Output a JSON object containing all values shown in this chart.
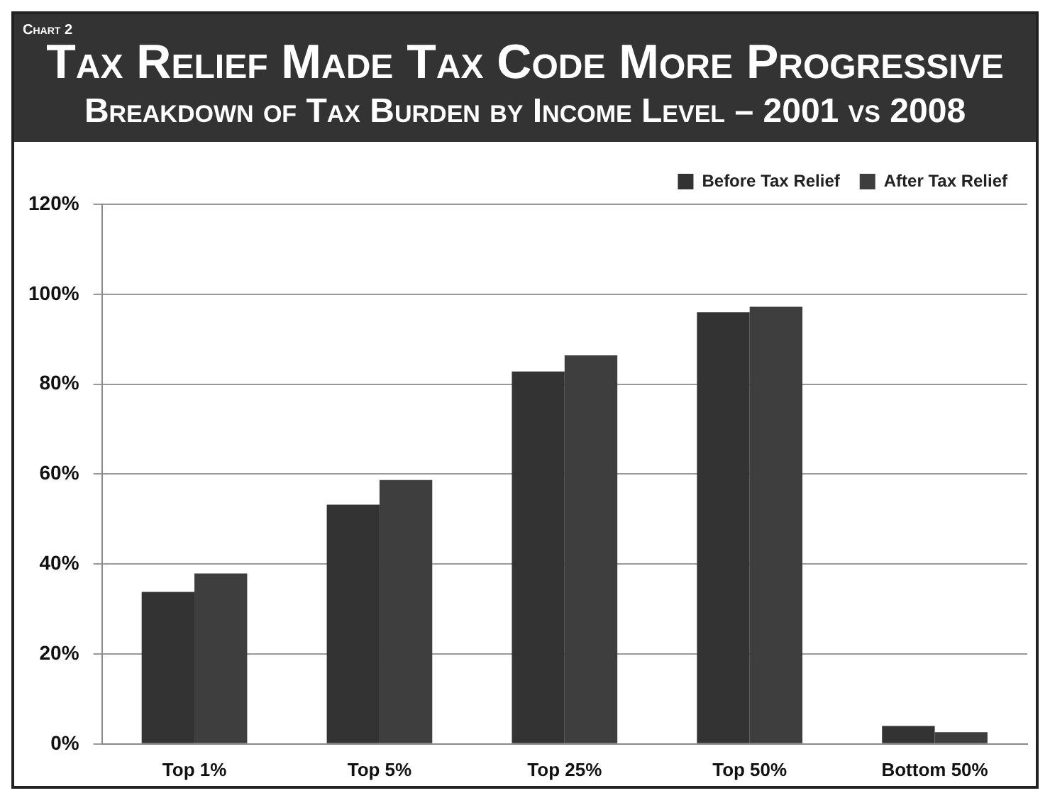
{
  "chart_data": {
    "type": "bar",
    "title": "Tax Relief Made Tax Code More Progressive",
    "subtitle": "Breakdown of Tax Burden by Income Level – 2001 vs 2008",
    "annotations": [
      "Chart 2"
    ],
    "categories": [
      "Top 1%",
      "Top 5%",
      "Top 25%",
      "Top 50%",
      "Bottom 50%"
    ],
    "series": [
      {
        "name": "Before Tax Relief",
        "color": "#333333",
        "values": [
          33.8,
          53.2,
          82.8,
          96,
          4
        ]
      },
      {
        "name": "After Tax Relief",
        "color": "#3e3e3e",
        "values": [
          37.9,
          58.7,
          86.4,
          97.2,
          2.6
        ]
      }
    ],
    "ylim": [
      0,
      120
    ],
    "yticks": [
      {
        "value": 0,
        "label": "0%"
      },
      {
        "value": 20,
        "label": "20%"
      },
      {
        "value": 40,
        "label": "40%"
      },
      {
        "value": 60,
        "label": "60%"
      },
      {
        "value": 80,
        "label": "80%"
      },
      {
        "value": 100,
        "label": "100%"
      },
      {
        "value": 120,
        "label": "120%"
      }
    ],
    "grid": "y",
    "legend": "top right"
  }
}
